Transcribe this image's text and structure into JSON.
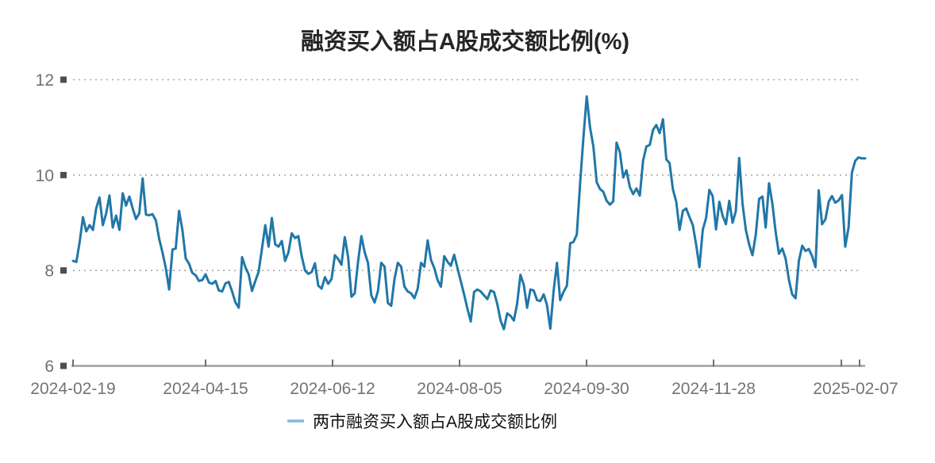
{
  "chart_data": {
    "type": "line",
    "title": "融资买入额占A股成交额比例(%)",
    "xlabel": "",
    "ylabel": "",
    "ylim": [
      6,
      12
    ],
    "y_ticks": [
      6,
      8,
      10,
      12
    ],
    "y_tick_labels": [
      "6",
      "8",
      "10",
      "12"
    ],
    "x_tick_labels": [
      "2024-02-19",
      "2024-04-15",
      "2024-06-12",
      "2024-08-05",
      "2024-09-30",
      "2024-11-28",
      "2025-02-07"
    ],
    "grid": "horizontal-dotted",
    "legend_position": "bottom-center",
    "legend": [
      "两市融资买入额占A股成交额比例"
    ],
    "colors": {
      "line": "#2177a8",
      "legend_marker": "#85b7d9",
      "grid": "#a8a8a8",
      "axis": "#9ba1a7",
      "tick_square": "#494f58",
      "tick_text": "#6f6f6f",
      "title_text": "#262626"
    },
    "series": [
      {
        "name": "两市融资买入额占A股成交额比例",
        "color": "#2177a8",
        "values": [
          8.2,
          8.18,
          8.6,
          9.12,
          8.82,
          8.95,
          8.85,
          9.3,
          9.53,
          8.95,
          9.2,
          9.57,
          8.9,
          9.15,
          8.85,
          9.62,
          9.36,
          9.55,
          9.3,
          9.08,
          9.2,
          9.93,
          9.17,
          9.16,
          9.18,
          9.05,
          8.66,
          8.38,
          8.05,
          7.6,
          8.44,
          8.46,
          9.25,
          8.85,
          8.25,
          8.14,
          7.95,
          7.9,
          7.78,
          7.8,
          7.92,
          7.75,
          7.72,
          7.78,
          7.58,
          7.56,
          7.73,
          7.76,
          7.56,
          7.33,
          7.22,
          8.28,
          8.07,
          7.92,
          7.57,
          7.78,
          7.97,
          8.45,
          8.95,
          8.5,
          9.1,
          8.55,
          8.5,
          8.62,
          8.2,
          8.38,
          8.78,
          8.68,
          8.72,
          8.3,
          8.0,
          7.93,
          7.97,
          8.15,
          7.68,
          7.62,
          7.86,
          7.72,
          7.82,
          8.32,
          8.24,
          8.12,
          8.7,
          8.28,
          7.45,
          7.52,
          8.18,
          8.72,
          8.38,
          8.16,
          7.48,
          7.33,
          7.57,
          8.16,
          8.08,
          7.32,
          7.26,
          7.82,
          8.16,
          8.08,
          7.66,
          7.56,
          7.52,
          7.42,
          7.62,
          8.16,
          8.08,
          8.63,
          8.22,
          8.05,
          7.8,
          7.66,
          8.3,
          8.18,
          8.1,
          8.33,
          8.05,
          7.77,
          7.5,
          7.2,
          6.93,
          7.55,
          7.6,
          7.56,
          7.48,
          7.4,
          7.58,
          7.55,
          7.3,
          6.95,
          6.77,
          7.1,
          7.05,
          6.95,
          7.3,
          7.91,
          7.7,
          7.22,
          7.6,
          7.58,
          7.38,
          7.36,
          7.5,
          7.28,
          6.78,
          7.57,
          8.16,
          7.38,
          7.55,
          7.68,
          8.57,
          8.6,
          8.75,
          9.83,
          10.8,
          11.65,
          11.0,
          10.6,
          9.85,
          9.71,
          9.65,
          9.46,
          9.38,
          9.45,
          10.68,
          10.48,
          9.95,
          10.1,
          9.75,
          9.6,
          9.72,
          9.57,
          10.3,
          10.6,
          10.63,
          10.95,
          11.05,
          10.88,
          11.17,
          10.33,
          10.25,
          9.7,
          9.44,
          8.85,
          9.25,
          9.3,
          9.12,
          8.95,
          8.55,
          8.07,
          8.85,
          9.1,
          9.69,
          9.56,
          8.86,
          9.44,
          9.15,
          8.97,
          9.46,
          9.0,
          9.25,
          10.36,
          9.4,
          8.85,
          8.55,
          8.32,
          8.75,
          9.5,
          9.55,
          8.9,
          9.83,
          9.4,
          8.8,
          8.35,
          8.46,
          8.25,
          7.8,
          7.5,
          7.42,
          8.2,
          8.52,
          8.41,
          8.45,
          8.3,
          8.07,
          9.68,
          8.97,
          9.07,
          9.44,
          9.56,
          9.42,
          9.47,
          9.58,
          8.5,
          8.9,
          10.05,
          10.3,
          10.37,
          10.35,
          10.35
        ]
      }
    ]
  }
}
